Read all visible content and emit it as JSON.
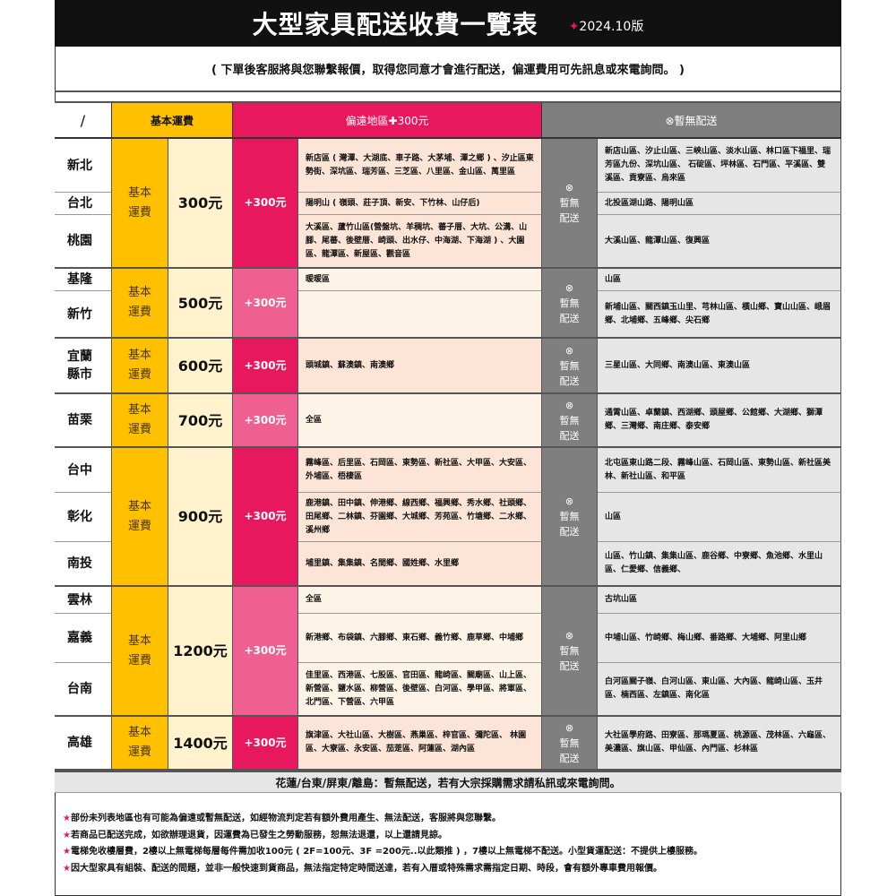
{
  "header": {
    "title": "大型家具配送收費一覽表",
    "version_mark": "✦",
    "version": "2024.10版"
  },
  "subtitle": "( 下單後客服將與您聯繫報價，取得您同意才會進行配送，偏運費用可先訊息或來電詢問。 )",
  "columns": {
    "corner": "/",
    "basic": "基本運費",
    "remote": "偏遠地區✚300元",
    "no_delivery": "⊗暫無配送"
  },
  "colors": {
    "black": "#111111",
    "yellow": "#ffc000",
    "cream": "#fff2cc",
    "pink_dark": "#e8185f",
    "pink_light": "#ef5f90",
    "peach": "#fce4d6",
    "cream_light": "#fdf3e6",
    "gray": "#7f7f7f",
    "gray_light": "#e7e6e6"
  },
  "basic_label": "基本\n運費",
  "no_delivery_label": "⊗\n暫無\n配送",
  "groups": [
    {
      "price": "300元",
      "surcharge": "+300元",
      "cities": [
        {
          "name": "新北",
          "remote": "新店區 ( 灣潭、大湖底、車子路、大茅埔、潭之鄉 ) 、汐止區東勢街、深坑區、瑞芳區、三芝區、八里區、金山區、萬里區",
          "no_delivery": "新店山區、汐止山區、三峽山區、淡水山區、林口區下福里、瑞芳區九份、深坑山區、 石碇區、坪林區、石門區、平溪區、雙溪區、貢寮區、烏來區"
        },
        {
          "name": "台北",
          "remote": "陽明山 ( 嶺頭、莊子頂、新安、下竹林、山仔后)",
          "no_delivery": "北投區湖山路、陽明山區"
        },
        {
          "name": "桃園",
          "remote": "大溪區、蘆竹山區(營盤坑、羊稠坑、蕃子厝、大坑、公溝、山腳、尾蕃、後壁厝、崎頭、出水仔、中海湖、下海湖 ) 、大園區、龍潭區、新屋區、觀音區",
          "no_delivery": "大溪山區、龍潭山區、復興區"
        }
      ]
    },
    {
      "price": "500元",
      "surcharge": "+300元",
      "cities": [
        {
          "name": "基隆",
          "remote": "暖暖區",
          "no_delivery": "山區"
        },
        {
          "name": "新竹",
          "remote": "",
          "no_delivery": "新埔山區、關西鎮玉山里、芎林山區、橫山鄉、寶山山區、峨眉鄉、北埔鄉、五峰鄉、尖石鄉"
        }
      ]
    },
    {
      "price": "600元",
      "surcharge": "+300元",
      "cities": [
        {
          "name": "宜蘭\n縣市",
          "remote": "頭城鎮、蘇澳鎮、南澳鄉",
          "no_delivery": "三星山區、大同鄉、南澳山區、東澳山區"
        }
      ]
    },
    {
      "price": "700元",
      "surcharge": "+300元",
      "cities": [
        {
          "name": "苗栗",
          "remote": "全區",
          "no_delivery": "通霄山區、卓蘭鎮、西湖鄉、頭屋鄉、公館鄉、大湖鄉、獅潭鄉、三灣鄉、南庄鄉、泰安鄉"
        }
      ]
    },
    {
      "price": "900元",
      "surcharge": "+300元",
      "cities": [
        {
          "name": "台中",
          "remote": "霧峰區、后里區、石岡區、東勢區、新社區、大甲區、大安區、外埔區、梧棲區",
          "no_delivery": "北屯區東山路二段、霧峰山區、石岡山區、東勢山區、新社區美林、新社山區、和平區"
        },
        {
          "name": "彰化",
          "remote": "鹿港鎮、田中鎮、伸港鄉、線西鄉、福興鄉、秀水鄉、社頭鄉、田尾鄉、二林鎮、芬園鄉、大城鄉、芳苑區、竹塘鄉、二水鄉、溪州鄉",
          "no_delivery": "山區"
        },
        {
          "name": "南投",
          "remote": "埔里鎮、集集鎮、名間鄉、國姓鄉、水里鄉",
          "no_delivery": "山區、竹山鎮、集集山區、鹿谷鄉、中寮鄉、魚池鄉、水里山區、仁愛鄉、信義鄉、"
        }
      ]
    },
    {
      "price": "1200元",
      "surcharge": "+300元",
      "cities": [
        {
          "name": "雲林",
          "remote": "全區",
          "no_delivery": "古坑山區"
        },
        {
          "name": "嘉義",
          "remote": "新港鄉、布袋鎮、六腳鄉、東石鄉、義竹鄉、鹿草鄉、中埔鄉",
          "no_delivery": "中埔山區、竹崎鄉、梅山鄉、番路鄉、大埔鄉、阿里山鄉"
        },
        {
          "name": "台南",
          "remote": "佳里區、西港區、七股區、官田區、龍崎區、關廟區、山上區、新營區、鹽水區、柳營區、後壁區、白河區、學甲區、將軍區、北門區、下營區、六甲區",
          "no_delivery": "白河區關子嶺、白河山區、東山區、大內區、龍崎山區、玉井區、楠西區、左鎮區、南化區"
        }
      ]
    },
    {
      "price": "1400元",
      "surcharge": "+300元",
      "cities": [
        {
          "name": "高雄",
          "remote": "旗津區、大社山區、大樹區、燕巢區、梓官區、彌陀區、 林園區、大寮區、永安區、茄萣區、阿蓮區、湖內區",
          "no_delivery": "大社區學府路、田寮區、那瑪夏區、桃源區、茂林區、六龜區、美濃區、旗山區、甲仙區、內門區、杉林區"
        }
      ]
    }
  ],
  "footer": "花蓮/台東/屏東/離島：暫無配送，若有大宗採購需求請私訊或來電詢問。",
  "notes": [
    "部份未列表地區也有可能為偏遠或暫無配送，如經物流判定若有額外費用產生、無法配送，客服將與您聯繫。",
    "若商品已配送完成，如欲辦理退貨，因運費為已發生之勞動服務，恕無法退還，以上還請見諒。",
    "電梯免收樓層費，2樓以上無電梯每層每件需加收100元 ( 2F=100元、3F =200元..以此類推 ) ，7樓以上無電梯不配送。小型貨運配送：不提供上樓服務。",
    "因大型家具有組裝、配送的問題，並非一般快速到貨商品，無法指定特定時間送達，若有入厝或特殊需求需指定日期、時段，會有額外專車費用報價。"
  ],
  "note_star": "★"
}
